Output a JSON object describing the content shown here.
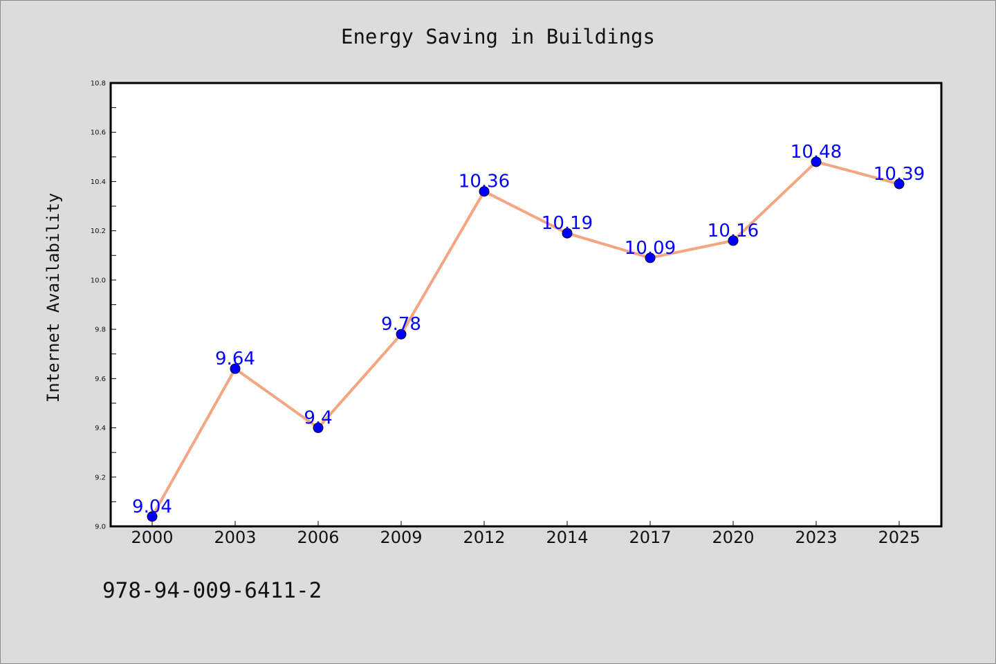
{
  "chart_data": {
    "type": "line",
    "title": "Energy Saving in Buildings",
    "xlabel": "",
    "ylabel": "Internet Availability",
    "categories": [
      "2000",
      "2003",
      "2006",
      "2009",
      "2012",
      "2014",
      "2017",
      "2020",
      "2023",
      "2025"
    ],
    "series": [
      {
        "values": [
          9.04,
          9.64,
          9.4,
          9.78,
          10.36,
          10.19,
          10.09,
          10.16,
          10.48,
          10.39
        ]
      }
    ],
    "data_labels": [
      "9.04",
      "9.64",
      "9.4",
      "9.78",
      "10.36",
      "10.19",
      "10.09",
      "10.16",
      "10.48",
      "10.39"
    ],
    "ylim": [
      9.0,
      10.8
    ],
    "yticks": [
      "9.0",
      "9.2",
      "9.4",
      "9.6",
      "9.8",
      "10.0",
      "10.2",
      "10.4",
      "10.6",
      "10.8"
    ],
    "grid": false,
    "legend": "none",
    "colors": {
      "line": "#f4a582",
      "marker": "#0000ff",
      "data_label": "#0000ff",
      "background": "#dcdcdc",
      "plot_background": "#ffffff"
    }
  },
  "footnote": "978-94-009-6411-2"
}
